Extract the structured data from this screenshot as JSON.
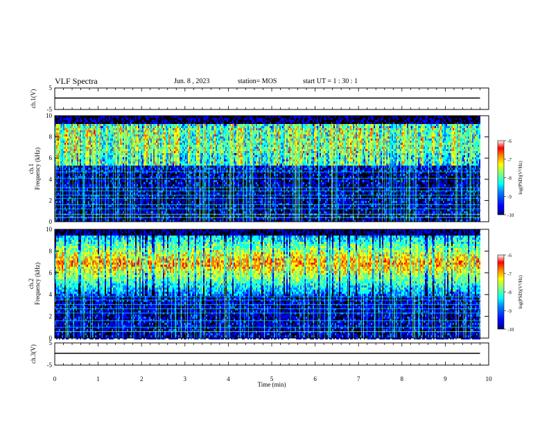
{
  "header": {
    "title": "VLF Spectra",
    "date": "Jun. 8 , 2023",
    "station": "station= MOS",
    "start": "start UT = 1 : 30 : 1"
  },
  "chart_data": [
    {
      "type": "line",
      "panel": "ch1-voltage",
      "ylabel": "ch.1(V)",
      "ylim": [
        -5,
        5
      ],
      "yticks": [
        "5",
        "-5"
      ],
      "xlim": [
        0,
        10
      ],
      "series": [
        {
          "x": [
            0,
            9.8
          ],
          "y": [
            0,
            0
          ]
        }
      ]
    },
    {
      "type": "heatmap",
      "panel": "ch1-spectrogram",
      "ylabel": "ch.1 Frequency (kHz)",
      "ylim": [
        0,
        10
      ],
      "yticks": [
        "0",
        "2",
        "4",
        "6",
        "8",
        "10"
      ],
      "xlim": [
        0,
        10
      ],
      "data_extent_min": 9.8,
      "colorbar": {
        "label": "log(PSD)(V²/Hz)",
        "range": [
          -10,
          -6
        ],
        "ticks": [
          "-6",
          "-7",
          "-8",
          "-9",
          "-10"
        ]
      },
      "description": "broadband impulsive (sferic) activity concentrated 5.5–10 kHz; persistent narrowband horizontal lines below 5 kHz"
    },
    {
      "type": "heatmap",
      "panel": "ch2-spectrogram",
      "ylabel": "ch.2 Frequency (kHz)",
      "ylim": [
        0,
        10
      ],
      "yticks": [
        "0",
        "2",
        "4",
        "6",
        "8",
        "10"
      ],
      "xlim": [
        0,
        10
      ],
      "data_extent_min": 9.8,
      "colorbar": {
        "label": "log(PSD)(V²/Hz)",
        "range": [
          -10,
          -6
        ],
        "ticks": [
          "-6",
          "-7",
          "-8",
          "-9",
          "-10"
        ]
      },
      "description": "intense emission centered near 7 kHz (peak log PSD ~ -6.5), sferics throughout; narrowband lines below 4 kHz"
    },
    {
      "type": "line",
      "panel": "ch3-voltage",
      "ylabel": "ch.3(V)",
      "ylim": [
        -5,
        5
      ],
      "yticks": [
        "5",
        "-5"
      ],
      "xlim": [
        0,
        10
      ],
      "xlabel": "Time (min)",
      "xticks": [
        "0",
        "1",
        "2",
        "3",
        "4",
        "5",
        "6",
        "7",
        "8",
        "9",
        "10"
      ],
      "series": [
        {
          "x": [
            0,
            9.8
          ],
          "y": [
            0,
            0
          ]
        }
      ]
    }
  ],
  "colors": {
    "colormap": [
      "#00007f",
      "#0000ff",
      "#007fff",
      "#00ffff",
      "#7fff7f",
      "#ffff00",
      "#ff7f00",
      "#ff0000",
      "#ffffff"
    ],
    "background_spectrogram": "#000000"
  }
}
